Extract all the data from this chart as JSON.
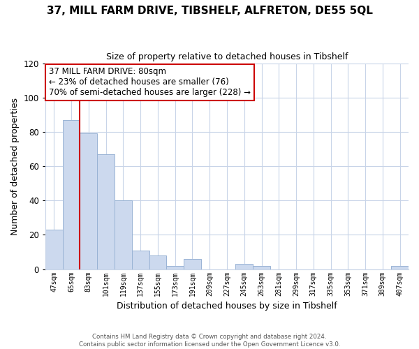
{
  "title": "37, MILL FARM DRIVE, TIBSHELF, ALFRETON, DE55 5QL",
  "subtitle": "Size of property relative to detached houses in Tibshelf",
  "xlabel": "Distribution of detached houses by size in Tibshelf",
  "ylabel": "Number of detached properties",
  "bar_labels": [
    "47sqm",
    "65sqm",
    "83sqm",
    "101sqm",
    "119sqm",
    "137sqm",
    "155sqm",
    "173sqm",
    "191sqm",
    "209sqm",
    "227sqm",
    "245sqm",
    "263sqm",
    "281sqm",
    "299sqm",
    "317sqm",
    "335sqm",
    "353sqm",
    "371sqm",
    "389sqm",
    "407sqm"
  ],
  "bar_values": [
    23,
    87,
    79,
    67,
    40,
    11,
    8,
    2,
    6,
    0,
    0,
    3,
    2,
    0,
    0,
    0,
    0,
    0,
    0,
    0,
    2
  ],
  "bar_color": "#ccd9ee",
  "bar_edge_color": "#99b3d4",
  "vline_color": "#cc0000",
  "vline_x": 1.5,
  "ylim": [
    0,
    120
  ],
  "yticks": [
    0,
    20,
    40,
    60,
    80,
    100,
    120
  ],
  "annotation_text": "37 MILL FARM DRIVE: 80sqm\n← 23% of detached houses are smaller (76)\n70% of semi-detached houses are larger (228) →",
  "annotation_box_facecolor": "#ffffff",
  "annotation_box_edgecolor": "#cc0000",
  "footer_line1": "Contains HM Land Registry data © Crown copyright and database right 2024.",
  "footer_line2": "Contains public sector information licensed under the Open Government Licence v3.0.",
  "background_color": "#ffffff",
  "grid_color": "#c8d4e8",
  "title_fontsize": 11,
  "subtitle_fontsize": 9,
  "xlabel_fontsize": 9,
  "ylabel_fontsize": 9
}
